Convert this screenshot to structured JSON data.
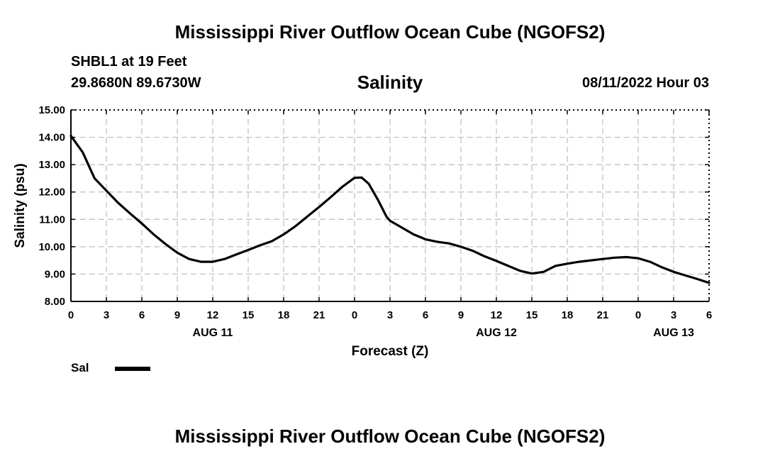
{
  "page": {
    "title_top": "Mississippi River Outflow Ocean Cube (NGOFS2)",
    "title_bottom": "Mississippi River Outflow Ocean Cube (NGOFS2)",
    "station": "SHBL1 at 19 Feet",
    "coords": "29.8680N  89.6730W",
    "run_time": "08/11/2022 Hour 03"
  },
  "chart_data": {
    "type": "line",
    "title": "Salinity",
    "xlabel": "Forecast (Z)",
    "ylabel": "Salinity (psu)",
    "xlim": [
      0,
      54
    ],
    "ylim": [
      8,
      15
    ],
    "grid": true,
    "x_ticks": [
      {
        "x": 0,
        "label": "0"
      },
      {
        "x": 3,
        "label": "3"
      },
      {
        "x": 6,
        "label": "6"
      },
      {
        "x": 9,
        "label": "9"
      },
      {
        "x": 12,
        "label": "12"
      },
      {
        "x": 15,
        "label": "15"
      },
      {
        "x": 18,
        "label": "18"
      },
      {
        "x": 21,
        "label": "21"
      },
      {
        "x": 24,
        "label": "0"
      },
      {
        "x": 27,
        "label": "3"
      },
      {
        "x": 30,
        "label": "6"
      },
      {
        "x": 33,
        "label": "9"
      },
      {
        "x": 36,
        "label": "12"
      },
      {
        "x": 39,
        "label": "15"
      },
      {
        "x": 42,
        "label": "18"
      },
      {
        "x": 45,
        "label": "21"
      },
      {
        "x": 48,
        "label": "0"
      },
      {
        "x": 51,
        "label": "3"
      },
      {
        "x": 54,
        "label": "6"
      }
    ],
    "y_ticks": [
      {
        "y": 8,
        "label": "8.00"
      },
      {
        "y": 9,
        "label": "9.00"
      },
      {
        "y": 10,
        "label": "10.00"
      },
      {
        "y": 11,
        "label": "11.00"
      },
      {
        "y": 12,
        "label": "12.00"
      },
      {
        "y": 13,
        "label": "13.00"
      },
      {
        "y": 14,
        "label": "14.00"
      },
      {
        "y": 15,
        "label": "15.00"
      }
    ],
    "date_labels": [
      {
        "x": 12,
        "label": "AUG 11"
      },
      {
        "x": 36,
        "label": "AUG 12"
      },
      {
        "x": 51,
        "label": "AUG 13"
      }
    ],
    "series": [
      {
        "name": "Sal",
        "color": "#000000",
        "points": [
          [
            0,
            14.05
          ],
          [
            1,
            13.45
          ],
          [
            2,
            12.5
          ],
          [
            3,
            12.05
          ],
          [
            4,
            11.6
          ],
          [
            5,
            11.22
          ],
          [
            6,
            10.85
          ],
          [
            7,
            10.45
          ],
          [
            8,
            10.1
          ],
          [
            9,
            9.78
          ],
          [
            10,
            9.55
          ],
          [
            11,
            9.45
          ],
          [
            12,
            9.45
          ],
          [
            13,
            9.55
          ],
          [
            14,
            9.72
          ],
          [
            15,
            9.88
          ],
          [
            16,
            10.05
          ],
          [
            17,
            10.2
          ],
          [
            18,
            10.45
          ],
          [
            19,
            10.75
          ],
          [
            20,
            11.1
          ],
          [
            21,
            11.45
          ],
          [
            22,
            11.82
          ],
          [
            23,
            12.2
          ],
          [
            24,
            12.52
          ],
          [
            24.6,
            12.53
          ],
          [
            25.2,
            12.3
          ],
          [
            26,
            11.7
          ],
          [
            26.7,
            11.1
          ],
          [
            27,
            10.95
          ],
          [
            28,
            10.7
          ],
          [
            29,
            10.45
          ],
          [
            30,
            10.27
          ],
          [
            31,
            10.18
          ],
          [
            32,
            10.12
          ],
          [
            33,
            10.0
          ],
          [
            34,
            9.85
          ],
          [
            35,
            9.65
          ],
          [
            36,
            9.48
          ],
          [
            37,
            9.3
          ],
          [
            38,
            9.12
          ],
          [
            39,
            9.02
          ],
          [
            40,
            9.08
          ],
          [
            41,
            9.3
          ],
          [
            42,
            9.38
          ],
          [
            43,
            9.45
          ],
          [
            44,
            9.5
          ],
          [
            45,
            9.55
          ],
          [
            46,
            9.6
          ],
          [
            47,
            9.62
          ],
          [
            48,
            9.58
          ],
          [
            49,
            9.45
          ],
          [
            50,
            9.25
          ],
          [
            51,
            9.08
          ],
          [
            52,
            8.95
          ],
          [
            53,
            8.82
          ],
          [
            54,
            8.68
          ]
        ]
      }
    ],
    "legend": [
      {
        "label": "Sal",
        "color": "#000000"
      }
    ]
  }
}
